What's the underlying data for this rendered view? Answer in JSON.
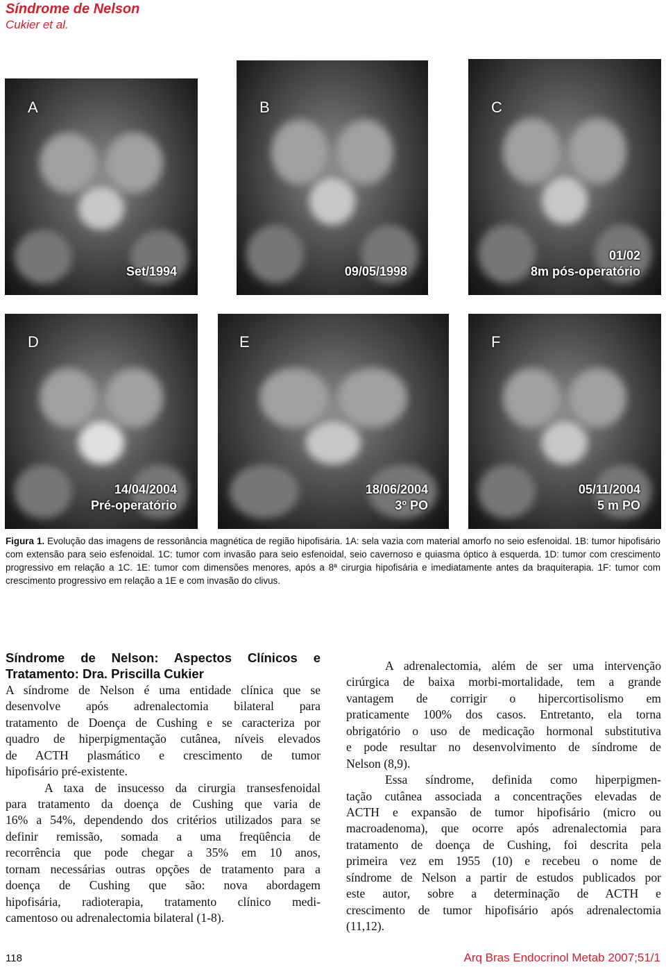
{
  "header": {
    "title": "Síndrome de Nelson",
    "authors": "Cukier et al."
  },
  "figure": {
    "panels": [
      {
        "letter": "A",
        "labels": [
          "Set/1994"
        ]
      },
      {
        "letter": "B",
        "labels": [
          "09/05/1998"
        ]
      },
      {
        "letter": "C",
        "labels": [
          "01/02",
          "8m pós-operatório"
        ]
      },
      {
        "letter": "D",
        "labels": [
          "14/04/2004",
          "Pré-operatório"
        ]
      },
      {
        "letter": "E",
        "labels": [
          "18/06/2004",
          "3º PO"
        ]
      },
      {
        "letter": "F",
        "labels": [
          "05/11/2004",
          "5 m PO"
        ]
      }
    ],
    "caption_label": "Figura 1.",
    "caption": "Evolução das imagens de ressonância magnética de região hipofisária. 1A: sela vazia com material amorfo no seio esfenoidal. 1B: tumor hipofisário com extensão para seio esfenoidal. 1C: tumor com invasão para seio esfenoidal, seio cavernoso e quiasma óptico à esquerda. 1D: tumor com crescimento progressivo em relação a 1C. 1E: tumor com dimensões menores, após a 8ª cirurgia hipofisária e imediatamente antes da braquiterapia. 1F: tumor com crescimento progressivo em relação a 1E e com invasão do clivus."
  },
  "article": {
    "heading": [
      "Síndrome de Nelson: Aspectos Clínicos e",
      "Tratamento: Dra. Priscilla Cukier"
    ],
    "left_paragraphs": [
      [
        "A síndrome de Nelson é uma entidade clínica que se",
        "desenvolve após adrenalectomia bilateral para",
        "tratamento de Doença de Cushing e se caracteriza por",
        "quadro de hiperpigmentação cutânea, níveis elevados",
        "de ACTH plasmático e crescimento de tumor",
        "hipofisário pré-existente."
      ],
      [
        "A taxa de insucesso da cirurgia transesfenoidal",
        "para tratamento da doença de Cushing que varia de",
        "16% a 54%, dependendo dos critérios utilizados para se",
        "definir remissão, somada a uma freqüência de",
        "recorrência que pode chegar a 35% em 10 anos,",
        "tornam necessárias outras opções de tratamento para a",
        "doença de Cushing que são: nova abordagem",
        "hipofisária, radioterapia, tratamento clínico medi-",
        "camentoso ou adrenalectomia bilateral (1-8)."
      ]
    ],
    "right_paragraphs": [
      [
        "A adrenalectomia, além de ser uma intervenção",
        "cirúrgica de baixa morbi-mortalidade, tem a grande",
        "vantagem de corrigir o hipercortisolismo em",
        "praticamente 100% dos casos. Entretanto, ela torna",
        "obrigatório o uso de medicação hormonal substitutiva",
        "e pode resultar no desenvolvimento de síndrome de",
        "Nelson (8,9)."
      ],
      [
        "Essa síndrome, definida como hiperpigmen-",
        "tação cutânea associada a concentrações elevadas de",
        "ACTH e expansão de tumor hipofisário (micro ou",
        "macroadenoma), que ocorre após adrenalectomia para",
        "tratamento de doença de Cushing, foi descrita pela",
        "primeira vez em 1955 (10) e recebeu o nome de",
        "síndrome de Nelson a partir de estudos publicados por",
        "este autor, sobre a determinação de ACTH e",
        "crescimento de tumor hipofisário após adrenalectomia",
        "(11,12)."
      ]
    ]
  },
  "footer": {
    "page": "118",
    "journal": "Arq Bras Endocrinol Metab 2007;51/1"
  }
}
